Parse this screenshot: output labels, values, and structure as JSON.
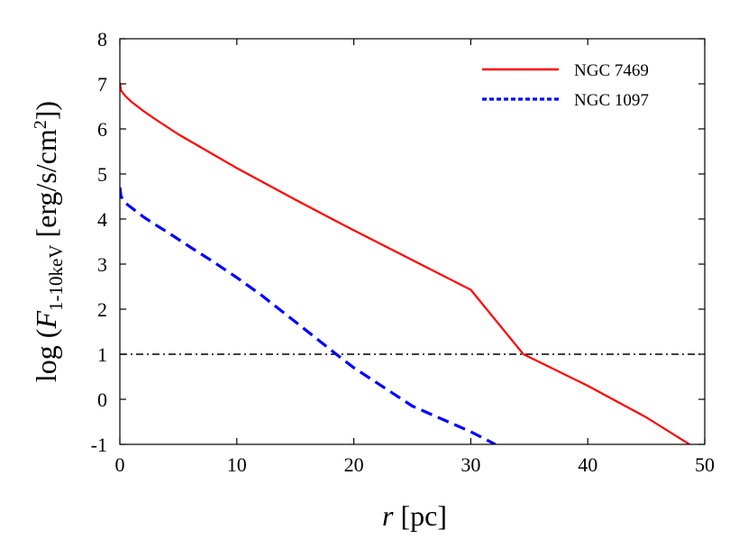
{
  "chart_data": {
    "type": "line",
    "title": "",
    "xlabel": {
      "var": "r",
      "unit": " [pc]"
    },
    "ylabel": {
      "prefix": "log (",
      "var": "F",
      "sub": "1-10keV",
      "mid": " [erg/s/cm",
      "sup": "2",
      "suffix": "])"
    },
    "xlim": [
      0,
      50
    ],
    "ylim": [
      -1,
      8
    ],
    "xticks": [
      "0",
      "10",
      "20",
      "30",
      "40",
      "50"
    ],
    "yticks": [
      "-1",
      "0",
      "1",
      "2",
      "3",
      "4",
      "5",
      "6",
      "7",
      "8"
    ],
    "legend_position": "top-right",
    "series": [
      {
        "name": "NGC 7469",
        "color": "#ff0000",
        "style": "solid",
        "x": [
          0,
          0.1,
          0.5,
          1,
          2,
          3,
          4,
          5,
          6,
          8,
          10,
          12,
          15,
          18,
          20,
          25,
          30,
          34.5,
          40,
          45,
          48.7
        ],
        "y": [
          7.02,
          6.85,
          6.72,
          6.6,
          6.4,
          6.22,
          6.05,
          5.88,
          5.73,
          5.43,
          5.13,
          4.85,
          4.43,
          4.02,
          3.75,
          3.09,
          2.43,
          1.0,
          0.3,
          -0.4,
          -1.0
        ]
      },
      {
        "name": "NGC 1097",
        "color": "#0000ff",
        "style": "dashed",
        "x": [
          0,
          0.1,
          0.5,
          1,
          2,
          3,
          4,
          5,
          6,
          8,
          10,
          12,
          15,
          18.5,
          20,
          25,
          30,
          32.1
        ],
        "y": [
          4.7,
          4.5,
          4.35,
          4.25,
          4.05,
          3.88,
          3.72,
          3.55,
          3.38,
          3.05,
          2.7,
          2.33,
          1.72,
          1.0,
          0.7,
          -0.15,
          -0.72,
          -1.0
        ]
      }
    ],
    "reference_line": {
      "y": 1,
      "color": "#000000",
      "style": "dash-dot"
    }
  }
}
